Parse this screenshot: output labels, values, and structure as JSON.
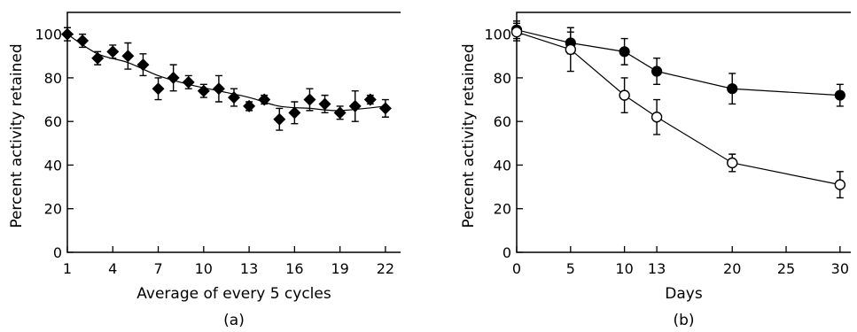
{
  "chart_data": [
    {
      "id": "a",
      "type": "scatter",
      "panel_label": "(a)",
      "xlabel": "Average of every 5 cycles",
      "ylabel": "Percent activity retained",
      "xlim": [
        1,
        23
      ],
      "ylim": [
        0,
        110
      ],
      "xticks": [
        1,
        4,
        7,
        10,
        13,
        16,
        19,
        22
      ],
      "yticks": [
        0,
        20,
        40,
        60,
        80,
        100
      ],
      "marker": "filled-diamond",
      "trend": "smooth curve",
      "series": [
        {
          "x": [
            1,
            2,
            3,
            4,
            5,
            6,
            7,
            8,
            9,
            10,
            11,
            12,
            13,
            14,
            15,
            16,
            17,
            18,
            19,
            20,
            21,
            22
          ],
          "y": [
            100,
            97,
            89,
            92,
            90,
            86,
            75,
            80,
            78,
            74,
            75,
            71,
            67,
            70,
            61,
            64,
            70,
            68,
            64,
            67,
            70,
            66
          ],
          "err": [
            3,
            3,
            3,
            3,
            6,
            5,
            5,
            6,
            3,
            3,
            6,
            4,
            2,
            2,
            5,
            5,
            5,
            4,
            3,
            7,
            2,
            4
          ]
        }
      ],
      "trend_points": [
        [
          1,
          100
        ],
        [
          3,
          91
        ],
        [
          5,
          87
        ],
        [
          7,
          81
        ],
        [
          9,
          77
        ],
        [
          11,
          74
        ],
        [
          13,
          71
        ],
        [
          15,
          67
        ],
        [
          17,
          66
        ],
        [
          19,
          65
        ],
        [
          22,
          67
        ]
      ]
    },
    {
      "id": "b",
      "type": "line",
      "panel_label": "(b)",
      "xlabel": "Days",
      "ylabel": "Percent activity retained",
      "xlim": [
        0,
        31
      ],
      "ylim": [
        0,
        110
      ],
      "xticks": [
        0,
        5,
        10,
        13,
        20,
        25,
        30
      ],
      "yticks": [
        0,
        20,
        40,
        60,
        80,
        100
      ],
      "series": [
        {
          "marker": "filled-circle",
          "x": [
            0,
            5,
            10,
            13,
            20,
            30
          ],
          "y": [
            102,
            96,
            92,
            83,
            75,
            72
          ],
          "err": [
            4,
            5,
            6,
            6,
            7,
            5
          ]
        },
        {
          "marker": "open-circle",
          "x": [
            0,
            5,
            10,
            13,
            20,
            30
          ],
          "y": [
            101,
            93,
            72,
            62,
            41,
            31
          ],
          "err": [
            4,
            10,
            8,
            8,
            4,
            6
          ]
        }
      ]
    }
  ]
}
